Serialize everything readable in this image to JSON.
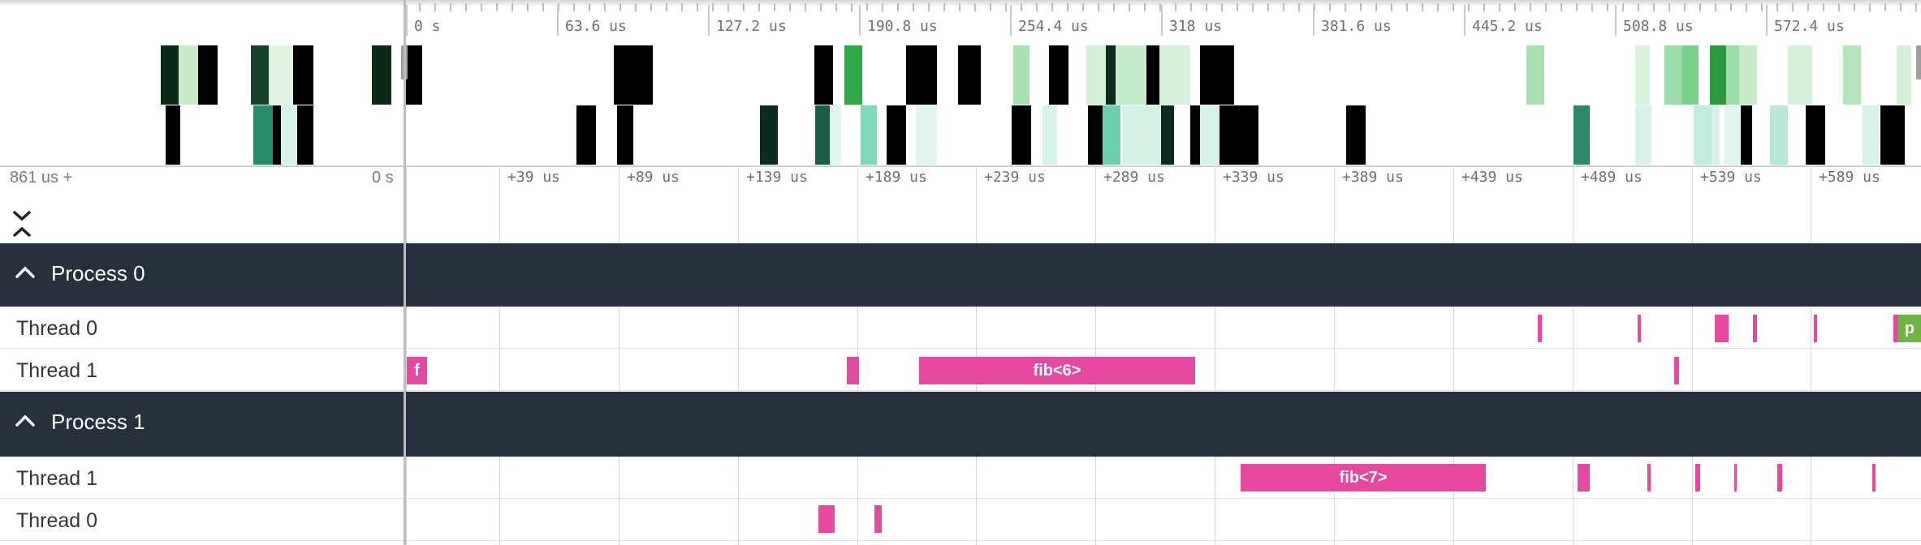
{
  "overview": {
    "tick_labels": [
      "0 s",
      "63.6 us",
      "127.2 us",
      "190.8 us",
      "254.4 us",
      "318 us",
      "381.6 us",
      "445.2 us",
      "508.8 us",
      "572.4 us"
    ]
  },
  "timeline": {
    "offset_label": "861 us +",
    "zero_label": "0 s",
    "tick_labels": [
      "+39 us",
      "+89 us",
      "+139 us",
      "+189 us",
      "+239 us",
      "+289 us",
      "+339 us",
      "+389 us",
      "+439 us",
      "+489 us",
      "+539 us",
      "+589 us"
    ]
  },
  "processes": [
    {
      "name": "Process 0",
      "threads": [
        {
          "name": "Thread 0"
        },
        {
          "name": "Thread 1"
        }
      ]
    },
    {
      "name": "Process 1",
      "threads": [
        {
          "name": "Thread 1"
        },
        {
          "name": "Thread 0"
        }
      ]
    }
  ],
  "slice_labels": {
    "p0t1_first": "f",
    "p0t1_fib6": "fib<6>",
    "p1t1_fib7": "fib<7>",
    "p0t0_last": "p"
  },
  "icons": {
    "collapse_all": "double-chevron-icon",
    "process_toggle": "chevron-up-icon"
  },
  "colors": {
    "slice": "#e8479f",
    "slice_green": "#6eb442",
    "header_bg": "#29303d"
  }
}
